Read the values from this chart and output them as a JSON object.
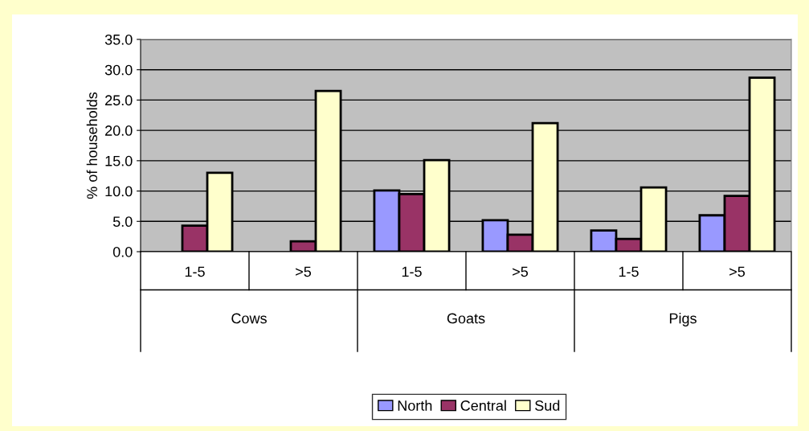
{
  "chart_data": {
    "type": "bar",
    "ylabel": "% of households",
    "categories": [
      "1-5",
      ">5",
      "1-5",
      ">5",
      "1-5",
      ">5"
    ],
    "annotations": [
      "Cows",
      "Goats",
      "Pigs"
    ],
    "series": [
      {
        "name": "North",
        "color": "#9999ff",
        "values": [
          null,
          null,
          10.1,
          5.2,
          3.5,
          6.0
        ]
      },
      {
        "name": "Central",
        "color": "#993366",
        "values": [
          4.3,
          1.7,
          9.5,
          2.8,
          2.1,
          9.2
        ]
      },
      {
        "name": "Sud",
        "color": "#ffffcc",
        "values": [
          13.0,
          26.5,
          15.1,
          21.2,
          10.6,
          28.7
        ]
      }
    ],
    "ylim": [
      0,
      35
    ],
    "yticks": [
      {
        "value": 0,
        "label": "0.0"
      },
      {
        "value": 5,
        "label": "5.0"
      },
      {
        "value": 10,
        "label": "10.0"
      },
      {
        "value": 15,
        "label": "15.0"
      },
      {
        "value": 20,
        "label": "20.0"
      },
      {
        "value": 25,
        "label": "25.0"
      },
      {
        "value": 30,
        "label": "30.0"
      },
      {
        "value": 35,
        "label": "35.0"
      }
    ],
    "grid": "y",
    "legend": "bottom"
  }
}
